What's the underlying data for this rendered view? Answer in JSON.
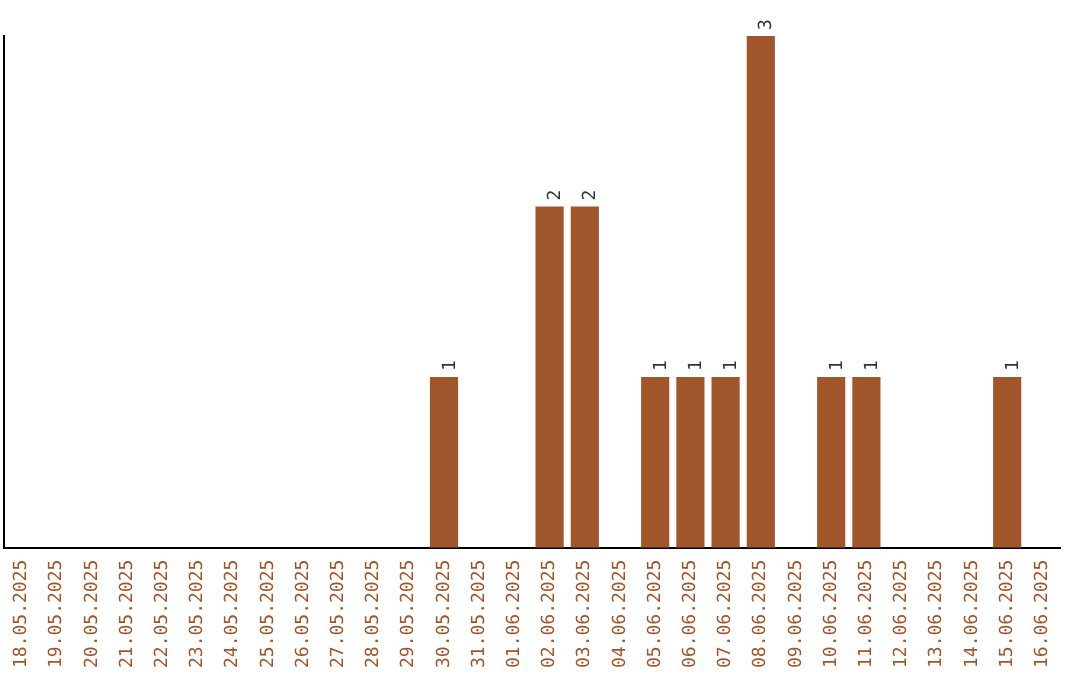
{
  "chart_data": {
    "type": "bar",
    "categories": [
      "18.05.2025",
      "19.05.2025",
      "20.05.2025",
      "21.05.2025",
      "22.05.2025",
      "23.05.2025",
      "24.05.2025",
      "25.05.2025",
      "26.05.2025",
      "27.05.2025",
      "28.05.2025",
      "29.05.2025",
      "30.05.2025",
      "31.05.2025",
      "01.06.2025",
      "02.06.2025",
      "03.06.2025",
      "04.06.2025",
      "05.06.2025",
      "06.06.2025",
      "07.06.2025",
      "08.06.2025",
      "09.06.2025",
      "10.06.2025",
      "11.06.2025",
      "12.06.2025",
      "13.06.2025",
      "14.06.2025",
      "15.06.2025",
      "16.06.2025"
    ],
    "values": [
      null,
      null,
      null,
      null,
      null,
      null,
      null,
      null,
      null,
      null,
      null,
      null,
      1,
      null,
      null,
      2,
      2,
      null,
      1,
      1,
      1,
      3,
      null,
      1,
      1,
      null,
      null,
      null,
      1,
      null
    ],
    "data_labels": true,
    "color": "#a0562a",
    "grid": false,
    "legend": false,
    "tick_labels": "x"
  }
}
